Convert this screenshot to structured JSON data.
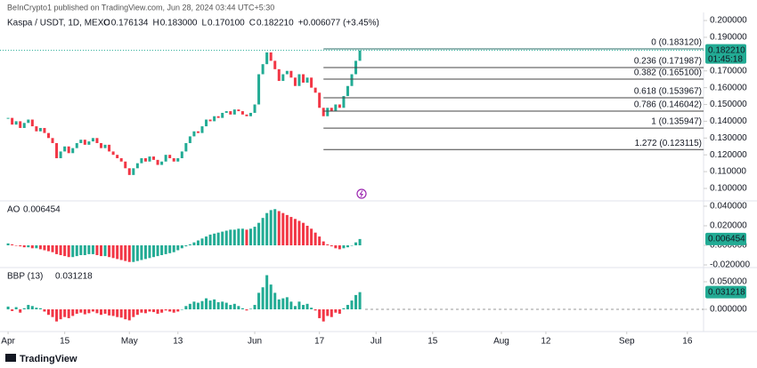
{
  "header": {
    "publisher": "BeInCrypto1 published on TradingView.com, Jun 28, 2024 03:44 UTC+5:30",
    "symbol": "Kaspa / USDT, 1D, MEXC",
    "legend": [
      {
        "key": "O",
        "text": "0.176134"
      },
      {
        "key": "H",
        "text": "0.183000"
      },
      {
        "key": "L",
        "text": "0.170100"
      },
      {
        "key": "C",
        "text": "0.182210"
      }
    ],
    "change": "+0.006077 (+3.45%)"
  },
  "footer": {
    "brand": "TradingView"
  },
  "chart_data": [
    {
      "type": "candlestick",
      "xlim": [
        -2,
        172
      ],
      "ylim": [
        0.0931,
        0.2048
      ],
      "up_color": "#22ab94",
      "down_color": "#f23645",
      "closes": [
        0.142,
        0.138,
        0.14,
        0.136,
        0.139,
        0.141,
        0.137,
        0.134,
        0.136,
        0.133,
        0.13,
        0.127,
        0.118,
        0.122,
        0.125,
        0.121,
        0.124,
        0.127,
        0.129,
        0.126,
        0.128,
        0.13,
        0.127,
        0.124,
        0.126,
        0.122,
        0.12,
        0.118,
        0.116,
        0.112,
        0.108,
        0.112,
        0.115,
        0.118,
        0.116,
        0.119,
        0.117,
        0.114,
        0.116,
        0.12,
        0.118,
        0.116,
        0.118,
        0.122,
        0.127,
        0.131,
        0.134,
        0.133,
        0.137,
        0.141,
        0.14,
        0.143,
        0.142,
        0.145,
        0.146,
        0.144,
        0.147,
        0.146,
        0.144,
        0.143,
        0.145,
        0.15,
        0.168,
        0.174,
        0.181,
        0.176,
        0.171,
        0.164,
        0.168,
        0.17,
        0.166,
        0.161,
        0.168,
        0.163,
        0.166,
        0.16,
        0.157,
        0.148,
        0.143,
        0.148,
        0.146,
        0.15,
        0.148,
        0.155,
        0.161,
        0.168,
        0.176,
        0.18221
      ],
      "yticks": [
        {
          "value": 0.2,
          "label": "0.200000"
        },
        {
          "value": 0.19,
          "label": "0.190000"
        },
        {
          "value": 0.17,
          "label": "0.170000"
        },
        {
          "value": 0.16,
          "label": "0.160000"
        },
        {
          "value": 0.15,
          "label": "0.150000"
        },
        {
          "value": 0.14,
          "label": "0.140000"
        },
        {
          "value": 0.13,
          "label": "0.130000"
        },
        {
          "value": 0.12,
          "label": "0.120000"
        },
        {
          "value": 0.11,
          "label": "0.110000"
        },
        {
          "value": 0.1,
          "label": "0.100000"
        }
      ],
      "xticks": [
        {
          "value": 0,
          "label": "Apr"
        },
        {
          "value": 14,
          "label": "15"
        },
        {
          "value": 30,
          "label": "May"
        },
        {
          "value": 42,
          "label": "13"
        },
        {
          "value": 61,
          "label": "Jun"
        },
        {
          "value": 77,
          "label": "17"
        },
        {
          "value": 91,
          "label": "Jul"
        },
        {
          "value": 105,
          "label": "15"
        },
        {
          "value": 122,
          "label": "Aug"
        },
        {
          "value": 133,
          "label": "12"
        },
        {
          "value": 153,
          "label": "Sep"
        },
        {
          "value": 168,
          "label": "16"
        }
      ],
      "last_price": {
        "value": 0.18221,
        "label": "0.182210",
        "timer": "01:45:18"
      },
      "fib_start": 78,
      "fib_levels": [
        {
          "value": 0.18312,
          "label": "0 (0.183120)"
        },
        {
          "value": 0.171987,
          "label": "0.236 (0.171987)"
        },
        {
          "value": 0.1651,
          "label": "0.382 (0.165100)"
        },
        {
          "value": 0.153967,
          "label": "0.618 (0.153967)"
        },
        {
          "value": 0.146042,
          "label": "0.786 (0.146042)"
        },
        {
          "value": 0.135947,
          "label": "1 (0.135947)"
        },
        {
          "value": 0.123115,
          "label": "1.272 (0.123115)"
        }
      ]
    },
    {
      "type": "histogram",
      "title": "AO",
      "xlim": [
        -2,
        172
      ],
      "ylim": [
        -0.0218,
        0.0436
      ],
      "up_color": "#22ab94",
      "down_color": "#f23645",
      "values": [
        0.002,
        0.001,
        0.0,
        -0.001,
        -0.002,
        -0.002,
        -0.003,
        -0.003,
        -0.004,
        -0.005,
        -0.006,
        -0.007,
        -0.009,
        -0.01,
        -0.011,
        -0.012,
        -0.012,
        -0.011,
        -0.01,
        -0.01,
        -0.009,
        -0.009,
        -0.01,
        -0.011,
        -0.011,
        -0.012,
        -0.013,
        -0.014,
        -0.015,
        -0.016,
        -0.017,
        -0.017,
        -0.016,
        -0.015,
        -0.014,
        -0.013,
        -0.012,
        -0.011,
        -0.01,
        -0.009,
        -0.008,
        -0.007,
        -0.005,
        -0.003,
        -0.001,
        0.001,
        0.003,
        0.005,
        0.007,
        0.009,
        0.011,
        0.012,
        0.013,
        0.014,
        0.015,
        0.016,
        0.016,
        0.017,
        0.017,
        0.016,
        0.017,
        0.019,
        0.023,
        0.028,
        0.033,
        0.036,
        0.037,
        0.035,
        0.033,
        0.031,
        0.029,
        0.027,
        0.025,
        0.023,
        0.02,
        0.017,
        0.013,
        0.009,
        0.004,
        0.001,
        -0.001,
        -0.003,
        -0.004,
        -0.003,
        -0.002,
        0.0,
        0.003,
        0.006454
      ],
      "last_value": {
        "value": 0.006454,
        "label": "0.006454"
      },
      "yticks": [
        {
          "value": 0.04,
          "label": "0.040000"
        },
        {
          "value": 0.02,
          "label": "0.020000"
        },
        {
          "value": 0,
          "label": "0.000000"
        },
        {
          "value": -0.02,
          "label": "-0.020000"
        }
      ]
    },
    {
      "type": "histogram",
      "title": "BBP (13)",
      "color_by_sign": true,
      "xlim": [
        -2,
        172
      ],
      "ylim": [
        -0.0387,
        0.0726
      ],
      "up_color": "#22ab94",
      "down_color": "#f23645",
      "values": [
        0.005,
        -0.003,
        0.004,
        -0.006,
        0.002,
        0.008,
        0.006,
        0.003,
        0.002,
        -0.004,
        -0.01,
        -0.014,
        -0.022,
        -0.018,
        -0.014,
        -0.016,
        -0.012,
        -0.008,
        -0.006,
        -0.009,
        -0.007,
        -0.004,
        -0.007,
        -0.01,
        -0.008,
        -0.011,
        -0.012,
        -0.014,
        -0.015,
        -0.018,
        -0.02,
        -0.014,
        -0.01,
        -0.006,
        -0.007,
        -0.004,
        -0.005,
        -0.008,
        -0.006,
        -0.002,
        -0.004,
        -0.006,
        -0.004,
        0.0,
        0.006,
        0.01,
        0.014,
        0.012,
        0.015,
        0.02,
        0.016,
        0.018,
        0.013,
        0.014,
        0.012,
        0.008,
        0.01,
        0.006,
        0.002,
        -0.002,
        0.001,
        0.008,
        0.03,
        0.04,
        0.062,
        0.045,
        0.03,
        0.018,
        0.02,
        0.022,
        0.014,
        0.006,
        0.014,
        0.008,
        0.01,
        0.003,
        -0.002,
        -0.016,
        -0.022,
        -0.012,
        -0.014,
        -0.006,
        -0.008,
        0.002,
        0.008,
        0.016,
        0.026,
        0.031218
      ],
      "last_value": {
        "value": 0.031218,
        "label": "0.031218"
      },
      "zero_line": true,
      "yticks": [
        {
          "value": 0.05,
          "label": "0.050000"
        },
        {
          "value": 0,
          "label": "0.000000"
        }
      ]
    }
  ]
}
